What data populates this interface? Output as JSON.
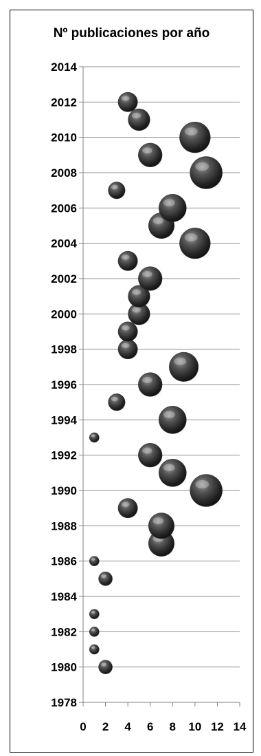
{
  "chart_data": {
    "type": "scatter",
    "title": "Nº publicaciones por año",
    "xlabel": "",
    "ylabel": "",
    "xlim": [
      0,
      14
    ],
    "ylim": [
      1978,
      2014
    ],
    "x_ticks": [
      0,
      2,
      4,
      6,
      8,
      10,
      12,
      14
    ],
    "y_ticks": [
      1978,
      1980,
      1982,
      1984,
      1986,
      1988,
      1990,
      1992,
      1994,
      1996,
      1998,
      2000,
      2002,
      2004,
      2006,
      2008,
      2010,
      2012,
      2014
    ],
    "grid": "horizontal",
    "legend": "none",
    "bubble_color": "#333333",
    "points": [
      {
        "year": 1980,
        "count": 2
      },
      {
        "year": 1981,
        "count": 1
      },
      {
        "year": 1982,
        "count": 1
      },
      {
        "year": 1983,
        "count": 1
      },
      {
        "year": 1985,
        "count": 2
      },
      {
        "year": 1986,
        "count": 1
      },
      {
        "year": 1987,
        "count": 7
      },
      {
        "year": 1988,
        "count": 7
      },
      {
        "year": 1989,
        "count": 4
      },
      {
        "year": 1990,
        "count": 11
      },
      {
        "year": 1991,
        "count": 8
      },
      {
        "year": 1992,
        "count": 6
      },
      {
        "year": 1993,
        "count": 1
      },
      {
        "year": 1994,
        "count": 8
      },
      {
        "year": 1995,
        "count": 3
      },
      {
        "year": 1996,
        "count": 6
      },
      {
        "year": 1997,
        "count": 9
      },
      {
        "year": 1998,
        "count": 4
      },
      {
        "year": 1999,
        "count": 4
      },
      {
        "year": 2000,
        "count": 5
      },
      {
        "year": 2001,
        "count": 5
      },
      {
        "year": 2002,
        "count": 6
      },
      {
        "year": 2003,
        "count": 4
      },
      {
        "year": 2004,
        "count": 10
      },
      {
        "year": 2005,
        "count": 7
      },
      {
        "year": 2006,
        "count": 8
      },
      {
        "year": 2007,
        "count": 3
      },
      {
        "year": 2008,
        "count": 11
      },
      {
        "year": 2009,
        "count": 6
      },
      {
        "year": 2010,
        "count": 10
      },
      {
        "year": 2011,
        "count": 5
      },
      {
        "year": 2012,
        "count": 4
      }
    ]
  }
}
